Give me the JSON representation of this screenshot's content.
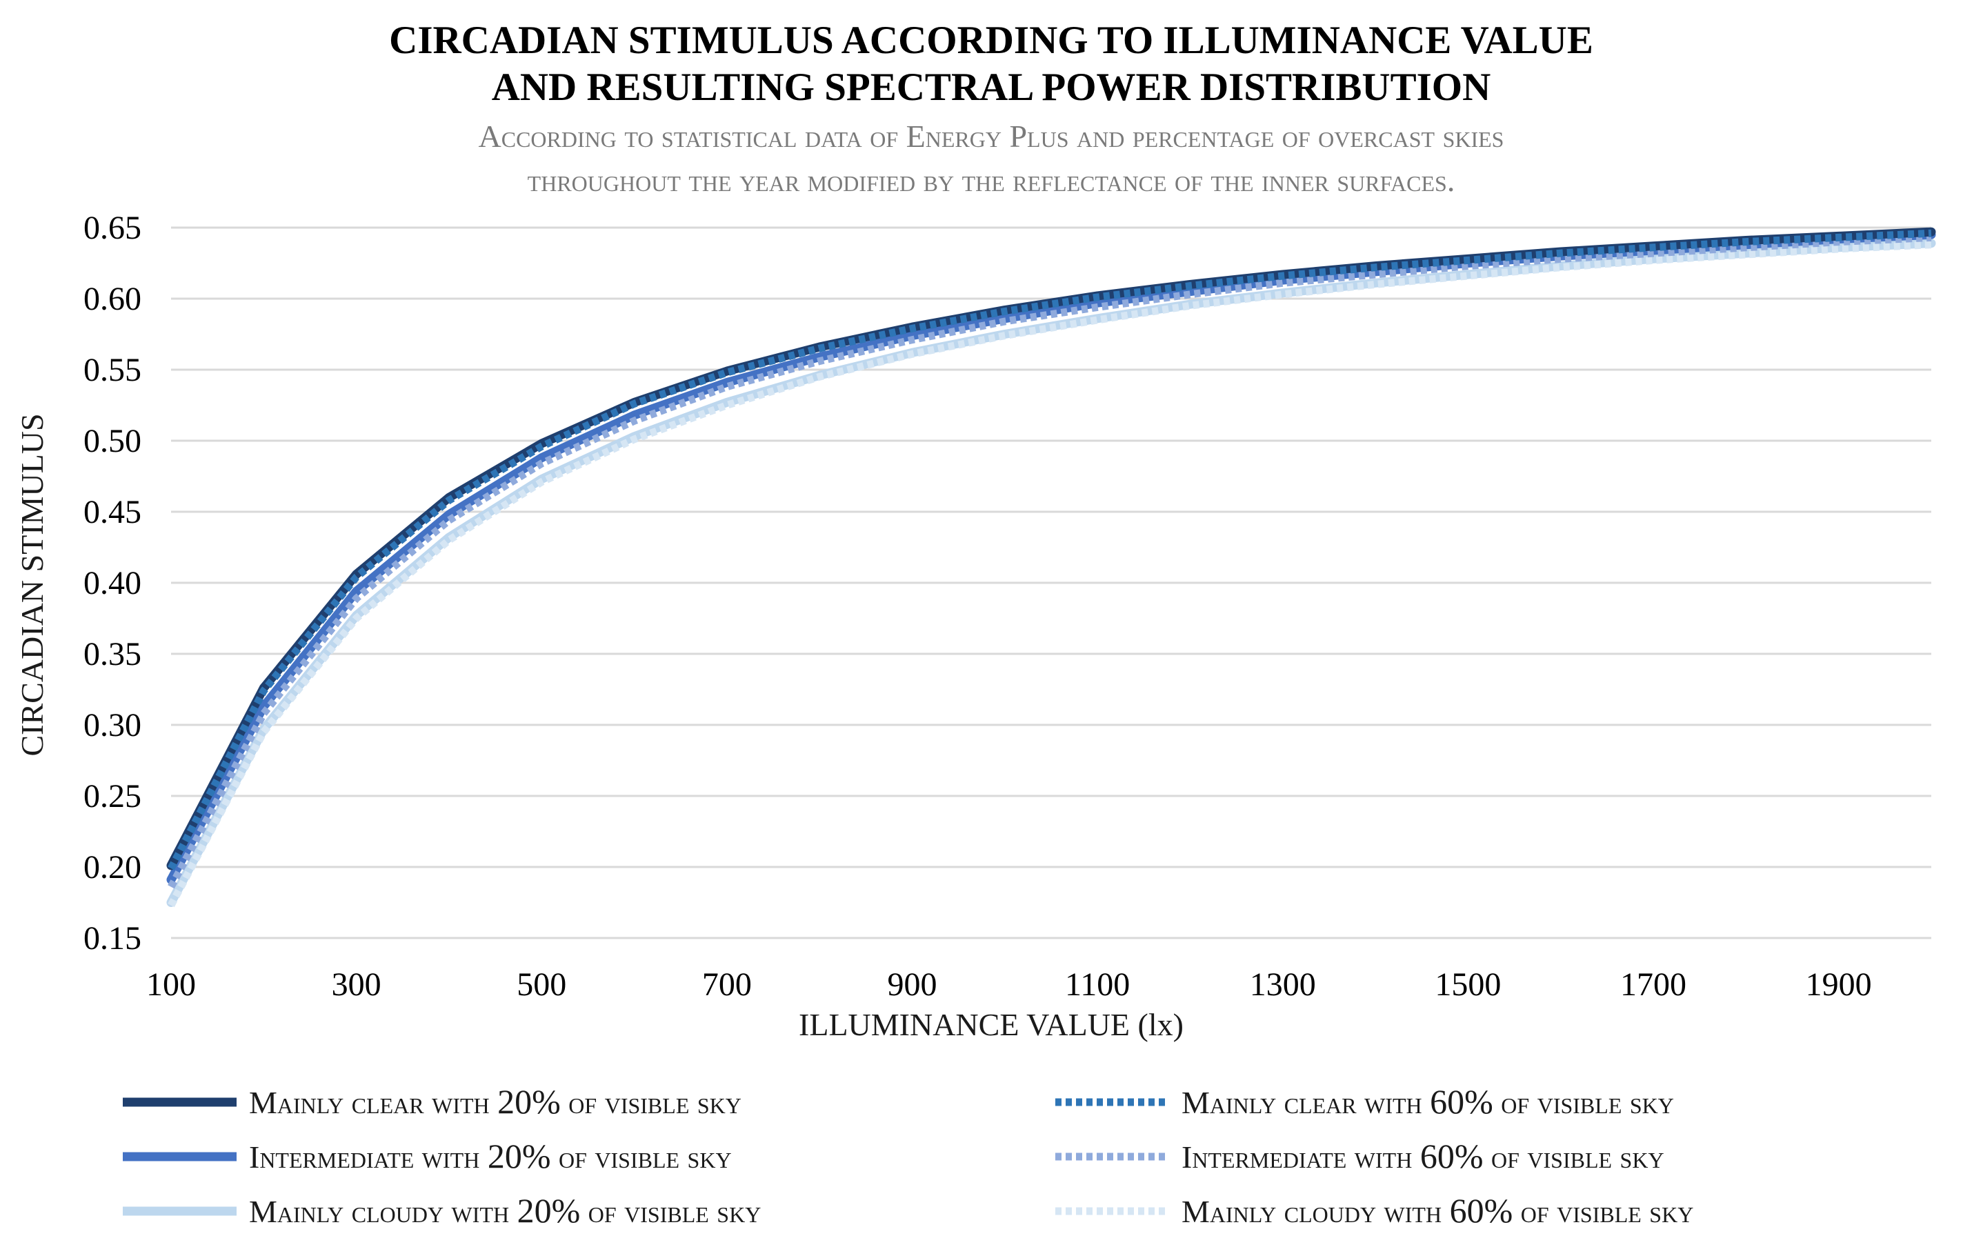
{
  "chart_data": {
    "type": "line",
    "title": "CIRCADIAN STIMULUS ACCORDING TO ILLUMINANCE VALUE AND RESULTING SPECTRAL POWER DISTRIBUTION",
    "title_lines": [
      "CIRCADIAN STIMULUS ACCORDING TO ILLUMINANCE VALUE",
      "AND RESULTING SPECTRAL POWER DISTRIBUTION"
    ],
    "subtitle_lines": [
      "According to statistical data of Energy Plus and percentage of overcast skies",
      "throughout the year modified by the reflectance of the inner surfaces."
    ],
    "xlabel": "ILLUMINANCE VALUE (lx)",
    "ylabel": "CIRCADIAN STIMULUS",
    "xlim": [
      100,
      2000
    ],
    "ylim": [
      0.15,
      0.65
    ],
    "x_ticks": [
      100,
      300,
      500,
      700,
      900,
      1100,
      1300,
      1500,
      1700,
      1900
    ],
    "y_ticks": [
      0.15,
      0.2,
      0.25,
      0.3,
      0.35,
      0.4,
      0.45,
      0.5,
      0.55,
      0.6,
      0.65
    ],
    "y_tick_labels": [
      "0.15",
      "0.20",
      "0.25",
      "0.30",
      "0.35",
      "0.40",
      "0.45",
      "0.50",
      "0.55",
      "0.60",
      "0.65"
    ],
    "grid": true,
    "legend_position": "bottom",
    "x": [
      100,
      200,
      300,
      400,
      500,
      600,
      700,
      800,
      900,
      1000,
      1100,
      1200,
      1300,
      1400,
      1500,
      1600,
      1700,
      1800,
      1900,
      2000
    ],
    "series": [
      {
        "name": "Mainly clear with 20% of visible sky",
        "style": "solid",
        "color": "#1f3f6e",
        "values": [
          0.201,
          0.326,
          0.406,
          0.46,
          0.498,
          0.527,
          0.549,
          0.566,
          0.58,
          0.592,
          0.602,
          0.61,
          0.617,
          0.623,
          0.628,
          0.633,
          0.637,
          0.641,
          0.644,
          0.647
        ]
      },
      {
        "name": "Mainly clear with 60% of visible sky",
        "style": "dotted",
        "color": "#2e75b6",
        "values": [
          0.199,
          0.324,
          0.404,
          0.458,
          0.496,
          0.526,
          0.548,
          0.565,
          0.579,
          0.591,
          0.601,
          0.609,
          0.616,
          0.622,
          0.627,
          0.632,
          0.636,
          0.64,
          0.643,
          0.646
        ]
      },
      {
        "name": "Intermediate with 20% of visible sky",
        "style": "solid",
        "color": "#4472c4",
        "values": [
          0.191,
          0.313,
          0.394,
          0.448,
          0.488,
          0.518,
          0.541,
          0.559,
          0.574,
          0.586,
          0.597,
          0.605,
          0.613,
          0.619,
          0.625,
          0.63,
          0.634,
          0.638,
          0.642,
          0.645
        ]
      },
      {
        "name": "Intermediate with 60% of visible sky",
        "style": "dotted",
        "color": "#8faadc",
        "values": [
          0.186,
          0.308,
          0.389,
          0.444,
          0.484,
          0.514,
          0.538,
          0.556,
          0.571,
          0.584,
          0.594,
          0.603,
          0.611,
          0.617,
          0.623,
          0.628,
          0.632,
          0.636,
          0.64,
          0.643
        ]
      },
      {
        "name": "Mainly cloudy with 20% of visible sky",
        "style": "solid",
        "color": "#bdd7ee",
        "values": [
          0.175,
          0.297,
          0.377,
          0.432,
          0.473,
          0.503,
          0.527,
          0.546,
          0.562,
          0.575,
          0.586,
          0.596,
          0.604,
          0.611,
          0.617,
          0.623,
          0.628,
          0.632,
          0.636,
          0.639
        ]
      },
      {
        "name": "Mainly cloudy with 60% of visible sky",
        "style": "dotted",
        "color": "#d6e6f4",
        "values": [
          0.173,
          0.295,
          0.375,
          0.43,
          0.471,
          0.501,
          0.525,
          0.545,
          0.561,
          0.574,
          0.585,
          0.595,
          0.603,
          0.61,
          0.616,
          0.622,
          0.627,
          0.631,
          0.635,
          0.638
        ]
      }
    ]
  },
  "legend": {
    "items": [
      {
        "prefix": "Mainly clear with ",
        "pct": "20%",
        "suffix": " of visible sky",
        "series_index": 0
      },
      {
        "prefix": "Mainly clear with ",
        "pct": "60%",
        "suffix": " of visible sky",
        "series_index": 1
      },
      {
        "prefix": "Intermediate with ",
        "pct": "20%",
        "suffix": " of visible sky",
        "series_index": 2
      },
      {
        "prefix": "Intermediate with ",
        "pct": "60%",
        "suffix": " of visible sky",
        "series_index": 3
      },
      {
        "prefix": "Mainly cloudy with ",
        "pct": "20%",
        "suffix": " of visible sky",
        "series_index": 4
      },
      {
        "prefix": "Mainly cloudy with ",
        "pct": "60%",
        "suffix": " of visible sky",
        "series_index": 5
      }
    ]
  }
}
